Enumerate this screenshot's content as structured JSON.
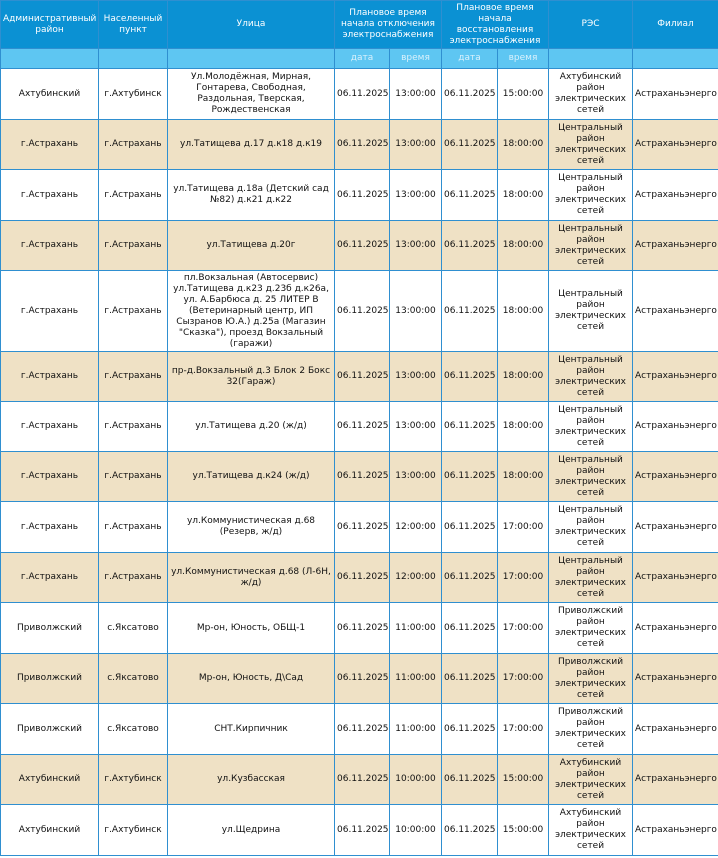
{
  "headers": [
    "Административный район",
    "Населенный пункт",
    "Улица",
    "Плановое время начала отключения электроснабжения",
    "Плановое время начала восстановления электроснабжения",
    "РЭС",
    "Филиал"
  ],
  "subheaders": [
    "дата",
    "время",
    "дата",
    "время"
  ],
  "colors": {
    "header": "#0b91d3",
    "subheader": "#5ec6f2",
    "alt_row": "#efe1c5",
    "border": "#2f8fd0"
  },
  "rows": [
    [
      "Ахтубинский",
      "г.Ахтубинск",
      "Ул.Молодёжная, Мирная, Гонтарева, Свободная, Раздольная, Тверская, Рождественская",
      "06.11.2025",
      "13:00:00",
      "06.11.2025",
      "15:00:00",
      "Ахтубинский район электрических сетей",
      "Астраханьэнерго"
    ],
    [
      "г.Астрахань",
      "г.Астрахань",
      "ул.Татищева д.17 д.к18 д.к19",
      "06.11.2025",
      "13:00:00",
      "06.11.2025",
      "18:00:00",
      "Центральный район электрических сетей",
      "Астраханьэнерго"
    ],
    [
      "г.Астрахань",
      "г.Астрахань",
      "ул.Татищева д.18а (Детский сад №82) д.к21 д.к22",
      "06.11.2025",
      "13:00:00",
      "06.11.2025",
      "18:00:00",
      "Центральный район электрических сетей",
      "Астраханьэнерго"
    ],
    [
      "г.Астрахань",
      "г.Астрахань",
      "ул.Татищева д.20г",
      "06.11.2025",
      "13:00:00",
      "06.11.2025",
      "18:00:00",
      "Центральный район электрических сетей",
      "Астраханьэнерго"
    ],
    [
      "г.Астрахань",
      "г.Астрахань",
      "пл.Вокзальная (Автосервис) ул.Татищева д.к23 д.23б д.к26а, ул. А.Барбюса д. 25 ЛИТЕР В (Ветеринарный центр, ИП Сызранов Ю.А.) д.25а (Магазин \"Сказка\"), проезд Вокзальный (гаражи)",
      "06.11.2025",
      "13:00:00",
      "06.11.2025",
      "18:00:00",
      "Центральный район электрических сетей",
      "Астраханьэнерго"
    ],
    [
      "г.Астрахань",
      "г.Астрахань",
      "пр-д.Вокзальный д.3 Блок 2 Бокс 32(Гараж)",
      "06.11.2025",
      "13:00:00",
      "06.11.2025",
      "18:00:00",
      "Центральный район электрических сетей",
      "Астраханьэнерго"
    ],
    [
      "г.Астрахань",
      "г.Астрахань",
      "ул.Татищева д.20 (ж/д)",
      "06.11.2025",
      "13:00:00",
      "06.11.2025",
      "18:00:00",
      "Центральный район электрических сетей",
      "Астраханьэнерго"
    ],
    [
      "г.Астрахань",
      "г.Астрахань",
      "ул.Татищева д.к24 (ж/д)",
      "06.11.2025",
      "13:00:00",
      "06.11.2025",
      "18:00:00",
      "Центральный район электрических сетей",
      "Астраханьэнерго"
    ],
    [
      "г.Астрахань",
      "г.Астрахань",
      "ул.Коммунистическая д.68 (Резерв, ж/д)",
      "06.11.2025",
      "12:00:00",
      "06.11.2025",
      "17:00:00",
      "Центральный район электрических сетей",
      "Астраханьэнерго"
    ],
    [
      "г.Астрахань",
      "г.Астрахань",
      "ул.Коммунистическая д.68 (Л-6Н, ж/д)",
      "06.11.2025",
      "12:00:00",
      "06.11.2025",
      "17:00:00",
      "Центральный район электрических сетей",
      "Астраханьэнерго"
    ],
    [
      "Приволжский",
      "с.Яксатово",
      "Мр-он, Юность, ОБЩ-1",
      "06.11.2025",
      "11:00:00",
      "06.11.2025",
      "17:00:00",
      "Приволжский район электрических сетей",
      "Астраханьэнерго"
    ],
    [
      "Приволжский",
      "с.Яксатово",
      "Мр-он, Юность, Д\\Сад",
      "06.11.2025",
      "11:00:00",
      "06.11.2025",
      "17:00:00",
      "Приволжский район электрических сетей",
      "Астраханьэнерго"
    ],
    [
      "Приволжский",
      "с.Яксатово",
      "СНТ.Кирпичник",
      "06.11.2025",
      "11:00:00",
      "06.11.2025",
      "17:00:00",
      "Приволжский район электрических сетей",
      "Астраханьэнерго"
    ],
    [
      "Ахтубинский",
      "г.Ахтубинск",
      "ул.Кузбасская",
      "06.11.2025",
      "10:00:00",
      "06.11.2025",
      "15:00:00",
      "Ахтубинский район электрических сетей",
      "Астраханьэнерго"
    ],
    [
      "Ахтубинский",
      "г.Ахтубинск",
      "ул.Щедрина",
      "06.11.2025",
      "10:00:00",
      "06.11.2025",
      "15:00:00",
      "Ахтубинский район электрических сетей",
      "Астраханьэнерго"
    ]
  ]
}
